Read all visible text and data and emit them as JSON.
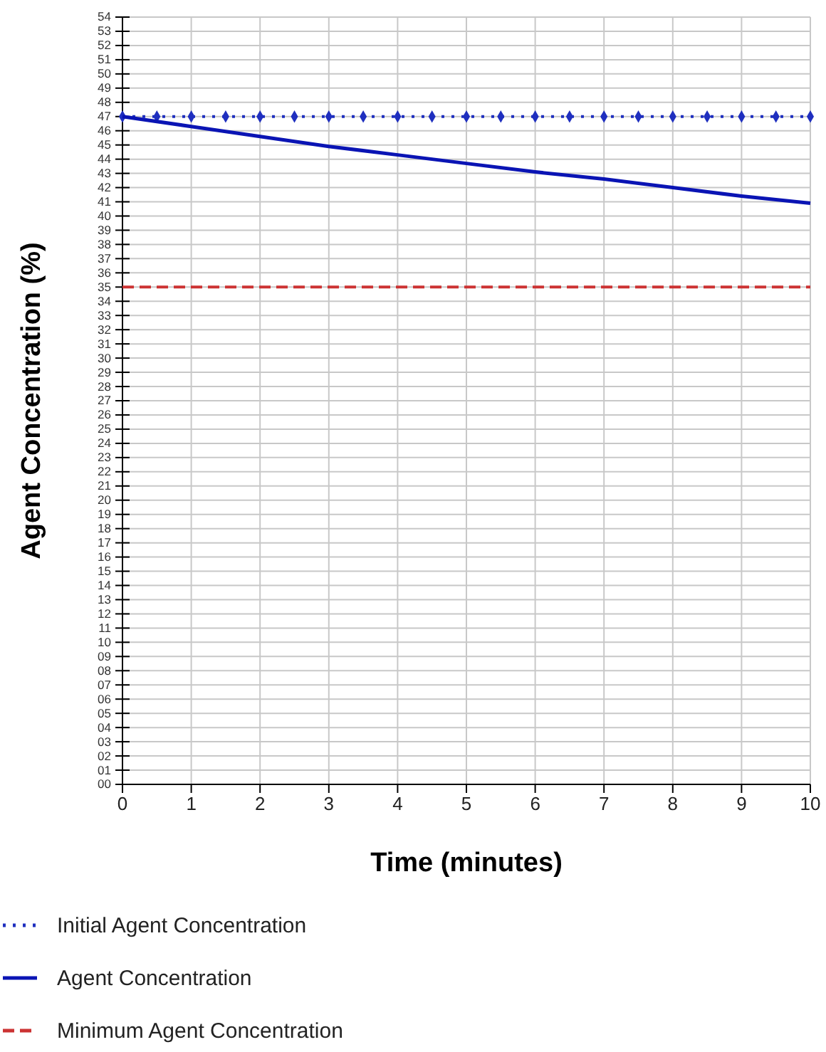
{
  "chart_data": {
    "type": "line",
    "xlabel": "Time (minutes)",
    "ylabel": "Agent Concentration (%)",
    "xlim": [
      0,
      10
    ],
    "xticks": [
      0,
      1,
      2,
      3,
      4,
      5,
      6,
      7,
      8,
      9,
      10
    ],
    "ylim": [
      0,
      54
    ],
    "yticks": [
      {
        "value": 0,
        "label": "00"
      },
      {
        "value": 1,
        "label": "01"
      },
      {
        "value": 2,
        "label": "02"
      },
      {
        "value": 3,
        "label": "03"
      },
      {
        "value": 4,
        "label": "04"
      },
      {
        "value": 5,
        "label": "05"
      },
      {
        "value": 6,
        "label": "06"
      },
      {
        "value": 7,
        "label": "07"
      },
      {
        "value": 8,
        "label": "08"
      },
      {
        "value": 9,
        "label": "09"
      },
      10,
      11,
      12,
      13,
      14,
      15,
      16,
      17,
      18,
      19,
      20,
      21,
      22,
      23,
      24,
      25,
      26,
      27,
      28,
      29,
      30,
      31,
      32,
      33,
      34,
      35,
      36,
      37,
      38,
      39,
      40,
      41,
      42,
      43,
      44,
      45,
      46,
      47,
      48,
      49,
      50,
      51,
      52,
      53,
      54
    ],
    "grid": true,
    "legend": "bottom",
    "series": [
      {
        "name": "Initial Agent Concentration",
        "color": "#1f2fbf",
        "line_style": "dotted",
        "marker": "diamond",
        "x": [
          0,
          0.5,
          1,
          1.5,
          2,
          2.5,
          3,
          3.5,
          4,
          4.5,
          5,
          5.5,
          6,
          6.5,
          7,
          7.5,
          8,
          8.5,
          9,
          9.5,
          10
        ],
        "values": [
          47,
          47,
          47,
          47,
          47,
          47,
          47,
          47,
          47,
          47,
          47,
          47,
          47,
          47,
          47,
          47,
          47,
          47,
          47,
          47,
          47
        ]
      },
      {
        "name": "Agent Concentration",
        "color": "#0a14b4",
        "line_style": "solid",
        "marker": "none",
        "x": [
          0,
          1,
          2,
          3,
          4,
          5,
          6,
          7,
          8,
          9,
          10
        ],
        "values": [
          47,
          46.3,
          45.6,
          44.9,
          44.3,
          43.7,
          43.1,
          42.6,
          42.0,
          41.4,
          40.9
        ]
      },
      {
        "name": "Minimum Agent Concentration",
        "color": "#cc3333",
        "line_style": "dashed",
        "marker": "none",
        "x": [
          0,
          10
        ],
        "values": [
          35,
          35
        ]
      }
    ]
  }
}
